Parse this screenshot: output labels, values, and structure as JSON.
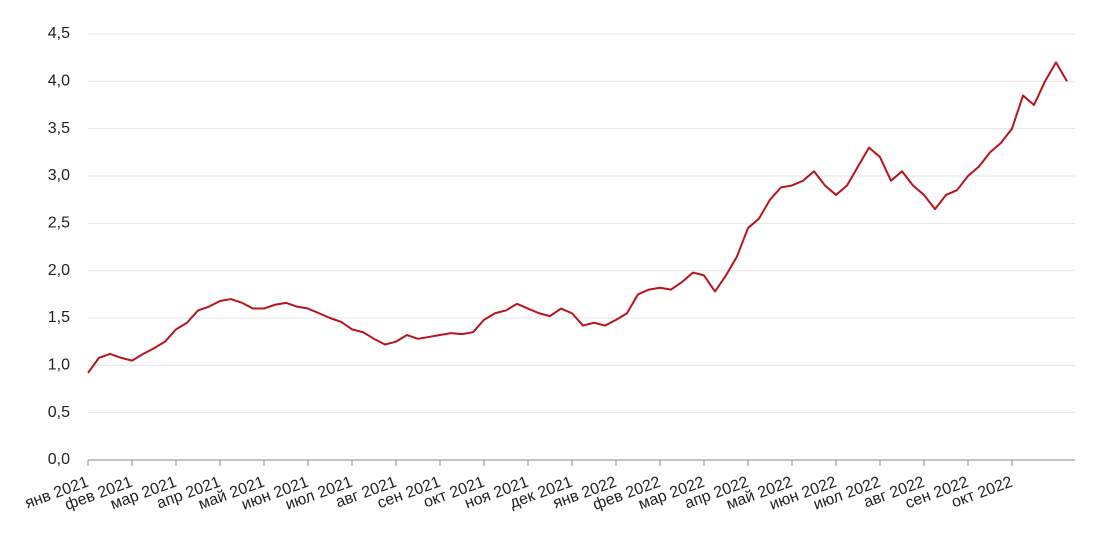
{
  "chart_data": {
    "type": "line",
    "color": "#b8141c",
    "grid": true,
    "categories": [
      "янв 2021",
      null,
      null,
      null,
      "фев 2021",
      null,
      null,
      null,
      "мар 2021",
      null,
      null,
      null,
      "апр 2021",
      null,
      null,
      null,
      "май 2021",
      null,
      null,
      null,
      "июн 2021",
      null,
      null,
      null,
      "июл 2021",
      null,
      null,
      null,
      "авг 2021",
      null,
      null,
      null,
      "сен 2021",
      null,
      null,
      null,
      "окт 2021",
      null,
      null,
      null,
      "ноя 2021",
      null,
      null,
      null,
      "дек 2021",
      null,
      null,
      null,
      "янв 2022",
      null,
      null,
      null,
      "фев 2022",
      null,
      null,
      null,
      "мар 2022",
      null,
      null,
      null,
      "апр 2022",
      null,
      null,
      null,
      "май 2022",
      null,
      null,
      null,
      "июн 2022",
      null,
      null,
      null,
      "июл 2022",
      null,
      null,
      null,
      "авг 2022",
      null,
      null,
      null,
      "сен 2022",
      null,
      null,
      null,
      "окт 2022",
      null,
      null,
      null,
      null,
      null
    ],
    "values": [
      0.92,
      1.08,
      1.12,
      1.08,
      1.05,
      1.12,
      1.18,
      1.25,
      1.38,
      1.45,
      1.58,
      1.62,
      1.68,
      1.7,
      1.66,
      1.6,
      1.6,
      1.64,
      1.66,
      1.62,
      1.6,
      1.55,
      1.5,
      1.46,
      1.38,
      1.35,
      1.28,
      1.22,
      1.25,
      1.32,
      1.28,
      1.3,
      1.32,
      1.34,
      1.33,
      1.35,
      1.48,
      1.55,
      1.58,
      1.65,
      1.6,
      1.55,
      1.52,
      1.6,
      1.55,
      1.42,
      1.45,
      1.42,
      1.48,
      1.55,
      1.75,
      1.8,
      1.82,
      1.8,
      1.88,
      1.98,
      1.95,
      1.78,
      1.95,
      2.15,
      2.45,
      2.55,
      2.75,
      2.88,
      2.9,
      2.95,
      3.05,
      2.9,
      2.8,
      2.9,
      3.1,
      3.3,
      3.2,
      2.95,
      3.05,
      2.9,
      2.8,
      2.65,
      2.8,
      2.85,
      3.0,
      3.1,
      3.25,
      3.35,
      3.5,
      3.85,
      3.75,
      4.0,
      4.2,
      4.0
    ],
    "ylim": [
      0,
      4.5
    ],
    "yticks": [
      {
        "value": 0,
        "label": "0,0"
      },
      {
        "value": 0.5,
        "label": "0,5"
      },
      {
        "value": 1,
        "label": "1,0"
      },
      {
        "value": 1.5,
        "label": "1,5"
      },
      {
        "value": 2,
        "label": "2,0"
      },
      {
        "value": 2.5,
        "label": "2,5"
      },
      {
        "value": 3,
        "label": "3,0"
      },
      {
        "value": 3.5,
        "label": "3,5"
      },
      {
        "value": 4,
        "label": "4,0"
      },
      {
        "value": 4.5,
        "label": "4,5"
      }
    ]
  }
}
